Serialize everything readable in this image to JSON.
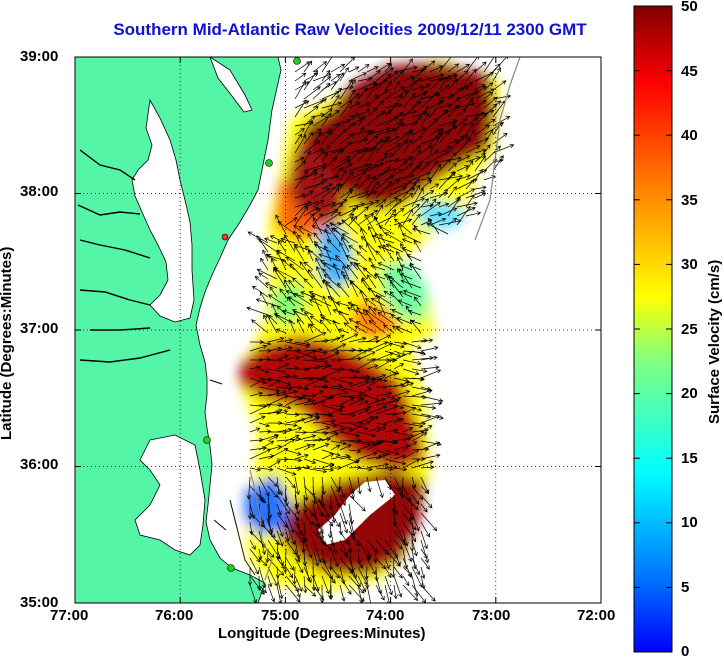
{
  "title": "Southern Mid-Atlantic Raw Velocities 2009/12/11 2300 GMT",
  "map": {
    "xlabel": "Longitude (Degrees:Minutes)",
    "ylabel": "Latitude (Degrees:Minutes)",
    "x_ticks": [
      "77:00",
      "76:00",
      "75:00",
      "74:00",
      "73:00",
      "72:00"
    ],
    "y_ticks": [
      "39:00",
      "38:00",
      "37:00",
      "36:00",
      "35:00"
    ],
    "lon_range": [
      -77,
      -72
    ],
    "lat_range": [
      35,
      39
    ],
    "grid": "dotted",
    "land_color": "#55f5a8",
    "sea_color": "#ffffff",
    "station_color": "#22cc22"
  },
  "colorbar": {
    "label": "Surface Velocity (cm/s)",
    "ticks": [
      "0",
      "5",
      "10",
      "15",
      "20",
      "25",
      "30",
      "35",
      "40",
      "45",
      "50"
    ],
    "range": [
      0,
      50
    ],
    "colormap": "jet"
  }
}
